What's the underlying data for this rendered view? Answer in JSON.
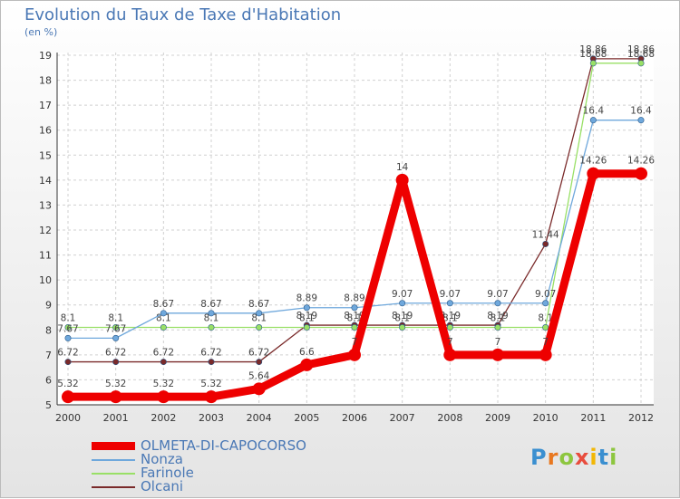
{
  "title": "Evolution du Taux de Taxe d'Habitation",
  "unit": "(en %)",
  "logo": {
    "parts": [
      "P",
      "r",
      "o",
      "x",
      "i",
      "t",
      "i"
    ]
  },
  "chart_data": {
    "type": "line",
    "title": "Evolution du Taux de Taxe d'Habitation",
    "ylabel": "(en %)",
    "xlabel": "",
    "x": [
      "2000",
      "2001",
      "2002",
      "2003",
      "2004",
      "2005",
      "2006",
      "2007",
      "2008",
      "2009",
      "2010",
      "2011",
      "2012"
    ],
    "ylim": [
      5,
      19
    ],
    "yticks": [
      5,
      6,
      7,
      8,
      9,
      10,
      11,
      12,
      13,
      14,
      15,
      16,
      17,
      18,
      19
    ],
    "grid": true,
    "legend_position": "bottom-left",
    "series": [
      {
        "name": "OLMETA-DI-CAPOCORSO",
        "color": "#ee0000",
        "values": [
          5.32,
          5.32,
          5.32,
          5.32,
          5.64,
          6.6,
          7,
          14,
          7,
          7,
          7,
          14.26,
          14.26
        ],
        "labels": [
          "5.32",
          "5.32",
          "5.32",
          "5.32",
          "5.64",
          "6.6",
          "7",
          "14",
          "7",
          "7",
          "7",
          "14.26",
          "14.26"
        ]
      },
      {
        "name": "Nonza",
        "color": "#6fa8dc",
        "values": [
          7.67,
          7.67,
          8.67,
          8.67,
          8.67,
          8.89,
          8.89,
          9.07,
          9.07,
          9.07,
          9.07,
          16.4,
          16.4
        ],
        "labels": [
          "7.67",
          "7.67",
          "8.67",
          "8.67",
          "8.67",
          "8.89",
          "8.89",
          "9.07",
          "9.07",
          "9.07",
          "9.07",
          "16.4",
          "16.4"
        ]
      },
      {
        "name": "Farinole",
        "color": "#99e066",
        "values": [
          8.1,
          8.1,
          8.1,
          8.1,
          8.1,
          8.1,
          8.1,
          8.1,
          8.1,
          8.1,
          8.1,
          18.68,
          18.68
        ],
        "labels": [
          "8.1",
          "8.1",
          "8.1",
          "8.1",
          "8.1",
          "8.1",
          "8.1",
          "8.1",
          "8.1",
          "8.1",
          "8.1",
          "18.68",
          "18.68"
        ]
      },
      {
        "name": "Olcani",
        "color": "#7a2a2a",
        "values": [
          6.72,
          6.72,
          6.72,
          6.72,
          6.72,
          8.19,
          8.19,
          8.19,
          8.19,
          8.19,
          11.44,
          18.86,
          18.86
        ],
        "labels": [
          "6.72",
          "6.72",
          "6.72",
          "6.72",
          "6.72",
          "8.19",
          "8.19",
          "8.19",
          "8.19",
          "8.19",
          "11.44",
          "18.86",
          "18.86"
        ]
      }
    ]
  }
}
